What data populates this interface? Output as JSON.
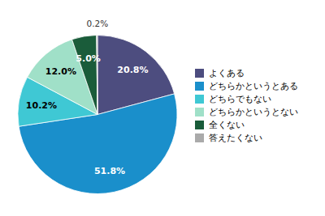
{
  "chart_data": {
    "type": "pie",
    "categories": [
      "よくある",
      "どちらかというとある",
      "どちらでもない",
      "どちらかというとない",
      "全くない",
      "答えたくない"
    ],
    "values": [
      20.8,
      51.8,
      10.2,
      12.0,
      5.0,
      0.2
    ],
    "value_labels": [
      "20.8%",
      "51.8%",
      "10.2%",
      "12.0%",
      "5.0%",
      "0.2%"
    ],
    "colors": [
      "#4d4d7f",
      "#1a8fcb",
      "#3fc8d4",
      "#a0e0c8",
      "#1a5c3a",
      "#aaaaaa"
    ],
    "data_labels": true,
    "legend": "right"
  }
}
